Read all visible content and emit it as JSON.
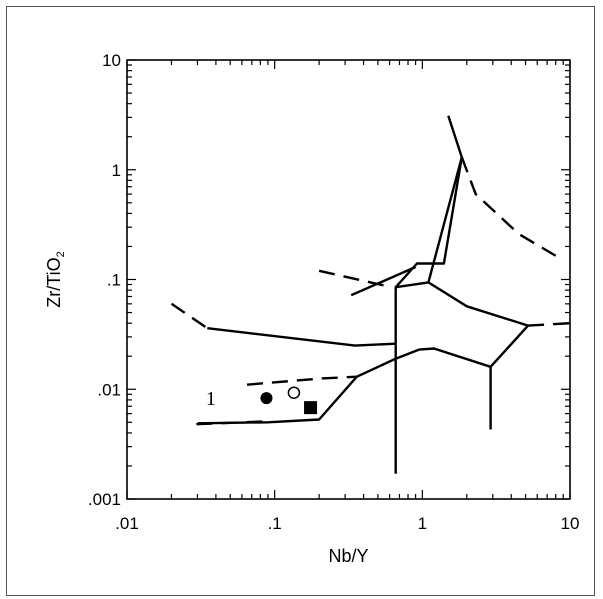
{
  "chart_data": {
    "type": "scatter",
    "title": "",
    "xlabel": "Nb/Y",
    "ylabel_main": "Zr/TiO",
    "ylabel_sub": "2",
    "x_scale": "log",
    "y_scale": "log",
    "xlim": [
      0.01,
      10
    ],
    "ylim": [
      0.001,
      10
    ],
    "grid": false,
    "x_ticks": [
      {
        "value": 0.01,
        "label": ".01"
      },
      {
        "value": 0.1,
        "label": ".1"
      },
      {
        "value": 1,
        "label": "1"
      },
      {
        "value": 10,
        "label": "10"
      }
    ],
    "y_ticks": [
      {
        "value": 0.001,
        "label": ".001"
      },
      {
        "value": 0.01,
        "label": ".01"
      },
      {
        "value": 0.1,
        "label": ".1"
      },
      {
        "value": 1,
        "label": "1"
      },
      {
        "value": 10,
        "label": "10"
      }
    ],
    "field_label": {
      "text": "1",
      "x": 0.037,
      "y": 0.0072
    },
    "boundaries": [
      {
        "style": "solid",
        "points": [
          [
            0.035,
            0.036
          ],
          [
            0.35,
            0.025
          ],
          [
            0.66,
            0.026
          ]
        ]
      },
      {
        "style": "solid",
        "points": [
          [
            0.33,
            0.072
          ],
          [
            0.9,
            0.13
          ]
        ]
      },
      {
        "style": "solid",
        "points": [
          [
            0.66,
            0.0017
          ],
          [
            0.66,
            0.085
          ],
          [
            0.92,
            0.14
          ],
          [
            1.4,
            0.14
          ],
          [
            1.85,
            1.3
          ],
          [
            1.5,
            3.1
          ]
        ]
      },
      {
        "style": "solid",
        "points": [
          [
            0.36,
            0.013
          ],
          [
            0.66,
            0.019
          ],
          [
            0.95,
            0.023
          ],
          [
            1.2,
            0.0235
          ],
          [
            2.9,
            0.016
          ],
          [
            5.2,
            0.038
          ],
          [
            2.0,
            0.057
          ],
          [
            1.1,
            0.094
          ],
          [
            0.66,
            0.085
          ]
        ]
      },
      {
        "style": "solid",
        "points": [
          [
            1.1,
            0.094
          ],
          [
            1.85,
            1.3
          ]
        ]
      },
      {
        "style": "solid",
        "points": [
          [
            2.9,
            0.0043
          ],
          [
            2.9,
            0.016
          ]
        ]
      },
      {
        "style": "solid",
        "points": [
          [
            0.03,
            0.0049
          ],
          [
            0.09,
            0.005
          ],
          [
            0.2,
            0.0053
          ],
          [
            0.36,
            0.013
          ]
        ]
      },
      {
        "style": "dashed",
        "points": [
          [
            0.02,
            0.06
          ],
          [
            0.035,
            0.036
          ]
        ]
      },
      {
        "style": "dashed",
        "points": [
          [
            0.2,
            0.12
          ],
          [
            0.62,
            0.085
          ]
        ]
      },
      {
        "style": "dashed",
        "points": [
          [
            0.065,
            0.011
          ],
          [
            0.2,
            0.0125
          ],
          [
            0.36,
            0.013
          ]
        ]
      },
      {
        "style": "dashed",
        "points": [
          [
            0.0295,
            0.0048
          ],
          [
            0.09,
            0.0051
          ]
        ]
      },
      {
        "style": "dashed",
        "points": [
          [
            1.85,
            1.3
          ],
          [
            2.3,
            0.6
          ],
          [
            4.5,
            0.26
          ],
          [
            9.0,
            0.15
          ]
        ]
      },
      {
        "style": "dashed",
        "points": [
          [
            5.2,
            0.038
          ],
          [
            10,
            0.04
          ]
        ]
      }
    ],
    "series": [
      {
        "marker": "filled-circle",
        "points": [
          [
            0.088,
            0.0083
          ]
        ]
      },
      {
        "marker": "open-circle",
        "points": [
          [
            0.135,
            0.0093
          ]
        ]
      },
      {
        "marker": "filled-square",
        "points": [
          [
            0.175,
            0.0068
          ]
        ]
      }
    ]
  }
}
